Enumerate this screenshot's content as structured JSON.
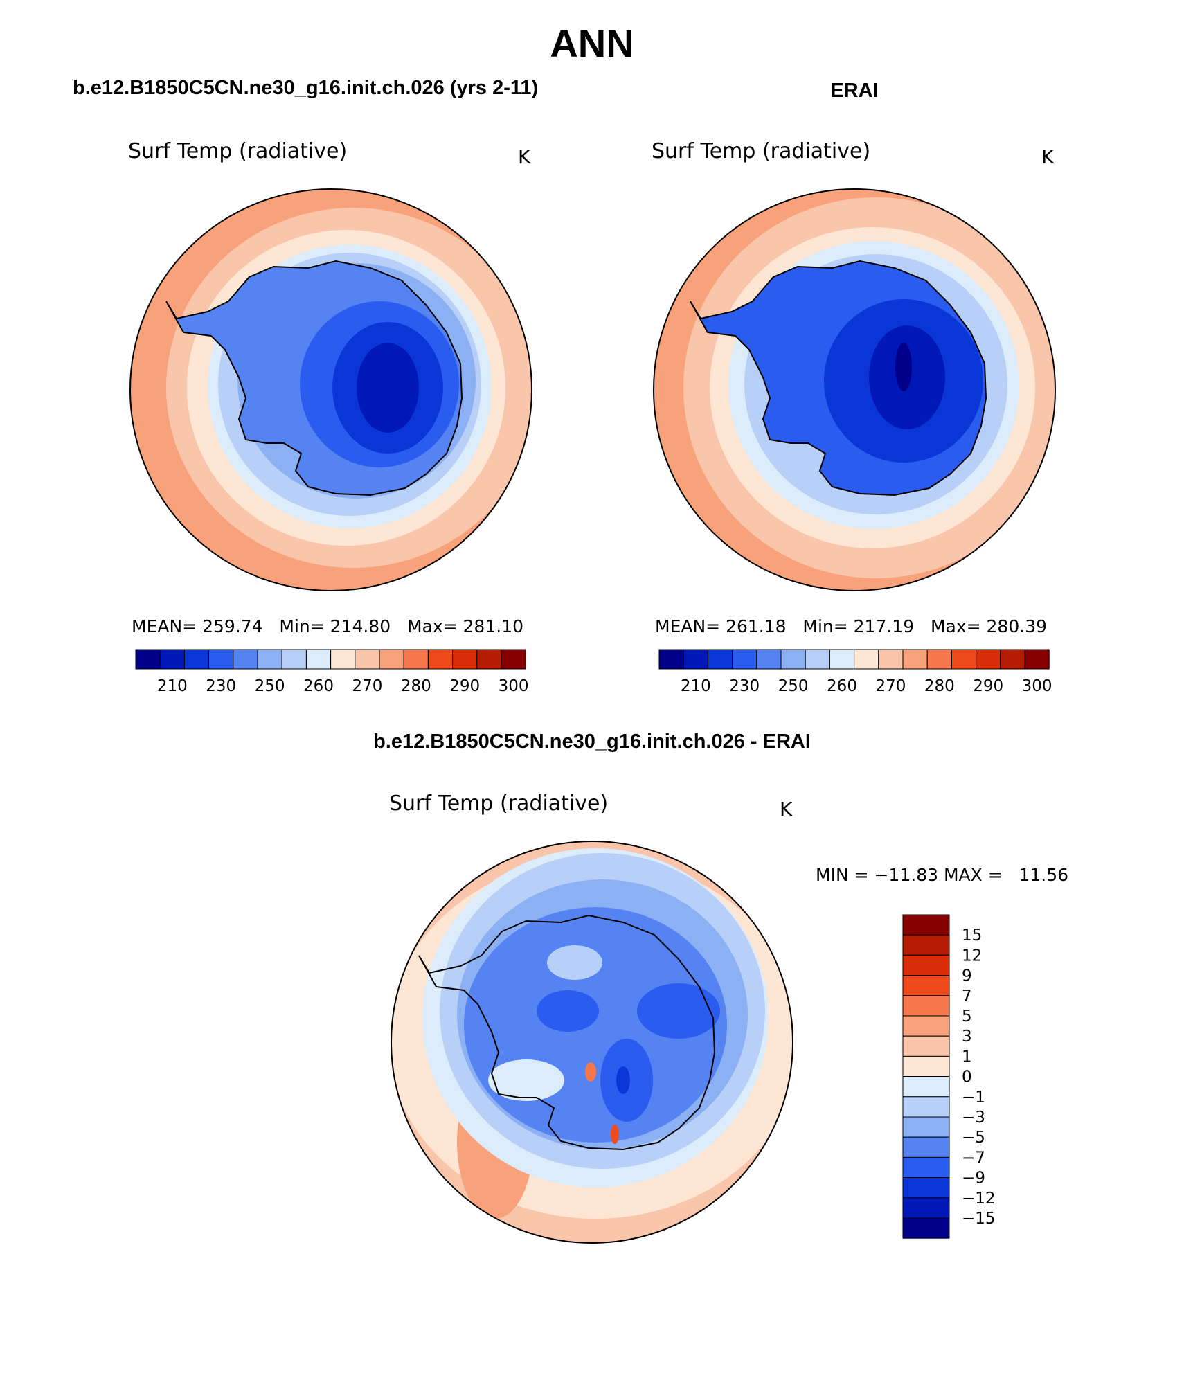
{
  "page_title": "ANN",
  "panels": [
    {
      "header": "b.e12.B1850C5CN.ne30_g16.init.ch.026 (yrs 2-11)",
      "variable": "Surf Temp (radiative)",
      "units": "K",
      "stats": "MEAN= 259.74   Min= 214.80   Max= 281.10",
      "mean": 259.74,
      "min": 214.8,
      "max": 281.1,
      "levels": [
        "210",
        "230",
        "250",
        "260",
        "270",
        "280",
        "290",
        "300"
      ]
    },
    {
      "header": "ERAI",
      "variable": "Surf Temp (radiative)",
      "units": "K",
      "stats": "MEAN= 261.18   Min= 217.19   Max= 280.39",
      "mean": 261.18,
      "min": 217.19,
      "max": 280.39,
      "levels": [
        "210",
        "230",
        "250",
        "260",
        "270",
        "280",
        "290",
        "300"
      ]
    }
  ],
  "diff": {
    "header": "b.e12.B1850C5CN.ne30_g16.init.ch.026 - ERAI",
    "variable": "Surf Temp (radiative)",
    "units": "K",
    "stats": "MIN = −11.83 MAX =   11.56",
    "min": -11.83,
    "max": 11.56,
    "levels": [
      "15",
      "12",
      "9",
      "7",
      "5",
      "3",
      "1",
      "0",
      "−1",
      "−3",
      "−5",
      "−7",
      "−9",
      "−12",
      "−15"
    ]
  },
  "colors": {
    "abs_scale": [
      "#00008b",
      "#0018b8",
      "#0a36d8",
      "#2a5cf0",
      "#5584f2",
      "#8cb0f4",
      "#b8d0f8",
      "#dcecfb",
      "#fde6d4",
      "#f9c6ab",
      "#f8a27c",
      "#f6784c",
      "#ef4a1c",
      "#d92e08",
      "#b51c04",
      "#860000"
    ],
    "diff_scale": [
      "#860000",
      "#b51c04",
      "#d92e08",
      "#ef4a1c",
      "#f6784c",
      "#f8a27c",
      "#f9c6ab",
      "#fde6d4",
      "#dcecfb",
      "#b8d0f8",
      "#8cb0f4",
      "#5584f2",
      "#2a5cf0",
      "#0a36d8",
      "#0018b8",
      "#00008b"
    ]
  }
}
